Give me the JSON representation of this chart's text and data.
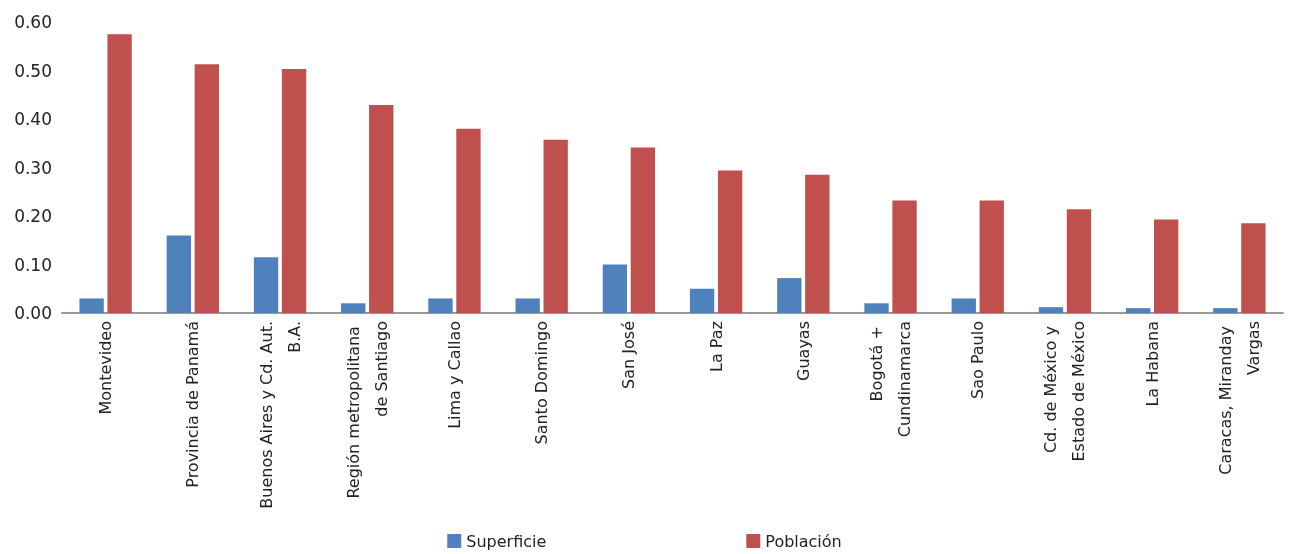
{
  "chart_data": {
    "type": "bar",
    "categories": [
      "Montevideo",
      "Provincia de Panamá",
      "Buenos Aires y Cd. Aut. B.A.",
      "Región metropolitana de Santiago",
      "Lima y Callao",
      "Santo Domingo",
      "San José",
      "La Paz",
      "Guayas",
      "Bogotá + Cundinamarca",
      "Sao Paulo",
      "Cd. de México y Estado de México",
      "La Habana",
      "Caracas, Miranday Vargas"
    ],
    "series": [
      {
        "name": "Superficie",
        "color": "#4f81bd",
        "values": [
          0.03,
          0.16,
          0.115,
          0.02,
          0.03,
          0.03,
          0.1,
          0.05,
          0.072,
          0.02,
          0.03,
          0.012,
          0.01,
          0.01
        ]
      },
      {
        "name": "Población",
        "color": "#c0504d",
        "values": [
          0.575,
          0.513,
          0.503,
          0.429,
          0.38,
          0.357,
          0.341,
          0.294,
          0.285,
          0.232,
          0.232,
          0.214,
          0.193,
          0.185
        ]
      }
    ],
    "ylim": [
      0,
      0.6
    ],
    "yticks": [
      {
        "value": 0,
        "label": "0.00"
      },
      {
        "value": 0.1,
        "label": "0.10"
      },
      {
        "value": 0.2,
        "label": "0.20"
      },
      {
        "value": 0.3,
        "label": "0.30"
      },
      {
        "value": 0.4,
        "label": "0.40"
      },
      {
        "value": 0.5,
        "label": "0.50"
      },
      {
        "value": 0.6,
        "label": "0.60"
      }
    ],
    "grid": false,
    "legend": "bottom"
  }
}
